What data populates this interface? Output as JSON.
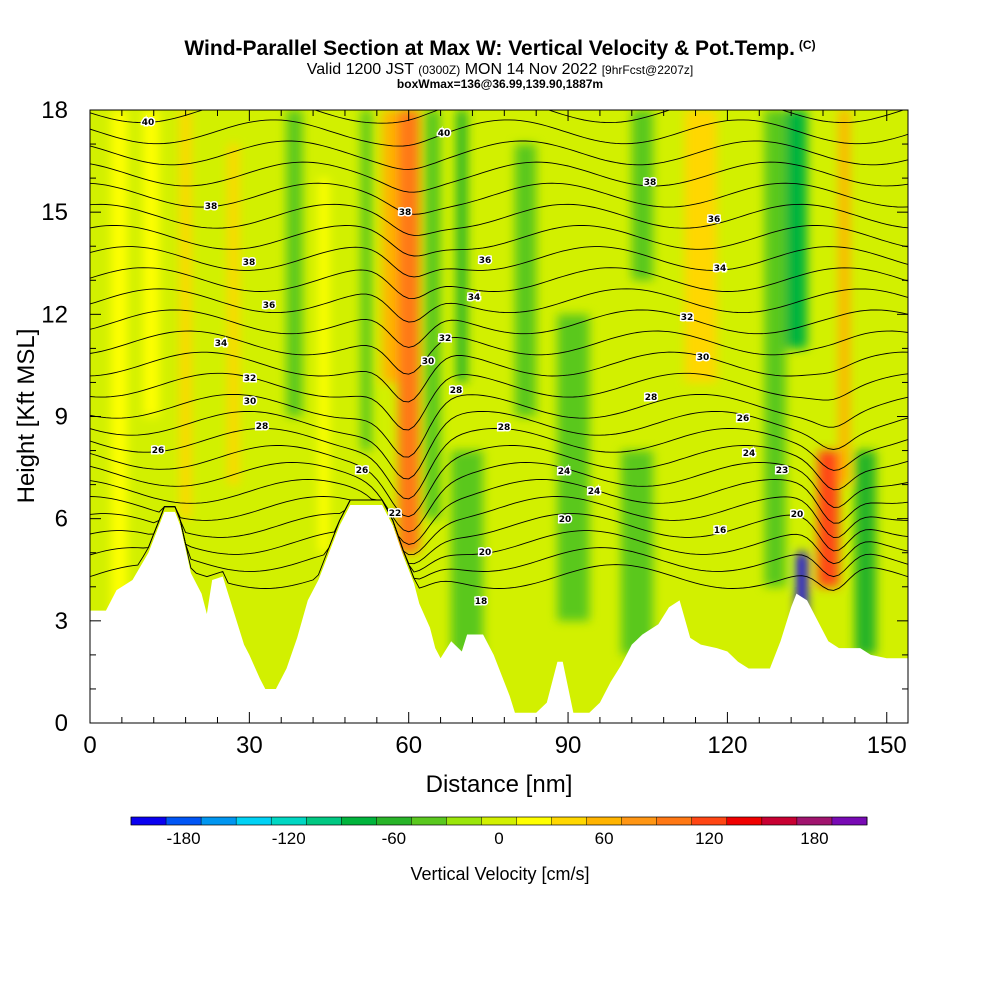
{
  "chart_data": {
    "type": "heatmap",
    "title": "Wind-Parallel Section at Max W: Vertical Velocity & Pot.Temp.",
    "title_mark": "(C)",
    "subtitle": {
      "valid": "Valid 1200 JST",
      "utc": "(0300Z)",
      "date": "MON 14 Nov 2022",
      "forecast": "[9hrFcst@2207z]"
    },
    "subtitle2": "boxWmax=136@36.99,139.90,1887m",
    "xlabel": "Distance [nm]",
    "ylabel": "Height [Kft MSL]",
    "xlim": [
      0,
      154
    ],
    "ylim": [
      0,
      18
    ],
    "x_ticks": [
      "0",
      "30",
      "60",
      "90",
      "120",
      "150"
    ],
    "y_ticks": [
      "0",
      "3",
      "6",
      "9",
      "12",
      "15",
      "18"
    ],
    "colorbar": {
      "label": "Vertical Velocity [cm/s]",
      "tick_labels": [
        "-180",
        "-120",
        "-60",
        "0",
        "60",
        "120",
        "180"
      ],
      "colors": [
        "#0a00f0",
        "#0055f5",
        "#0096f0",
        "#00d2f5",
        "#00d7c3",
        "#00c882",
        "#00b43c",
        "#28b428",
        "#5ac81e",
        "#9be60a",
        "#d2f000",
        "#ffff00",
        "#ffd700",
        "#ffb400",
        "#ff9614",
        "#ff7814",
        "#ff4614",
        "#f00000",
        "#c80032",
        "#a0146e",
        "#780ab4"
      ]
    },
    "grid": false,
    "w_values_cm_s": [
      0,
      20,
      -40,
      40,
      30,
      120,
      -40,
      60,
      -60,
      90,
      -200
    ],
    "theta_contour_labels": [
      "40",
      "40",
      "38",
      "38",
      "38",
      "38",
      "36",
      "36",
      "36",
      "34",
      "34",
      "34",
      "32",
      "32",
      "32",
      "30",
      "30",
      "30",
      "28",
      "28",
      "28",
      "28",
      "26",
      "26",
      "26",
      "24",
      "24",
      "24",
      "23",
      "22",
      "20",
      "20",
      "20",
      "18",
      "16",
      "16"
    ],
    "contour_line_count": 28
  }
}
